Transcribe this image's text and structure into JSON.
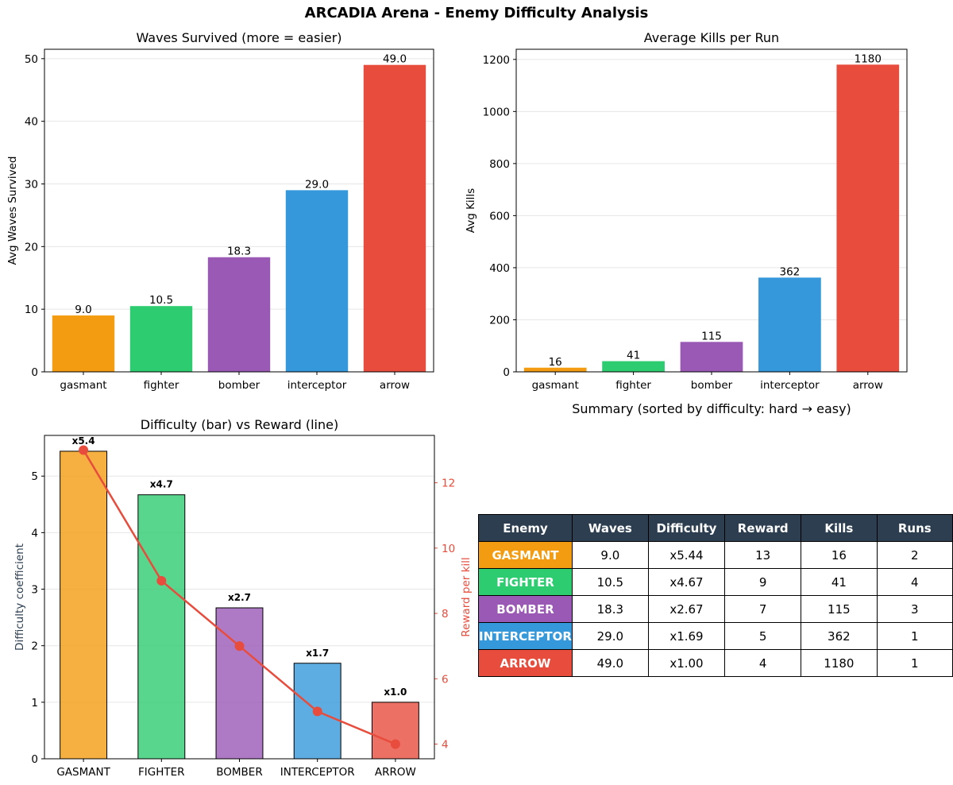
{
  "page_title": "ARCADIA Arena - Enemy Difficulty Analysis",
  "chart_data": [
    {
      "type": "bar",
      "title": "Waves Survived (more = easier)",
      "xlabel": "",
      "ylabel": "Avg Waves Survived",
      "categories": [
        "gasmant",
        "fighter",
        "bomber",
        "interceptor",
        "arrow"
      ],
      "values": [
        9.0,
        10.5,
        18.3,
        29.0,
        49.0
      ],
      "value_labels": [
        "9.0",
        "10.5",
        "18.3",
        "29.0",
        "49.0"
      ],
      "colors": [
        "#f39c12",
        "#2ecc71",
        "#9b59b6",
        "#3498db",
        "#e74c3c"
      ],
      "ylim": [
        0,
        51.5
      ],
      "yticks": [
        0,
        10,
        20,
        30,
        40,
        50
      ],
      "grid": "y"
    },
    {
      "type": "bar",
      "title": "Average Kills per Run",
      "xlabel": "",
      "ylabel": "Avg Kills",
      "categories": [
        "gasmant",
        "fighter",
        "bomber",
        "interceptor",
        "arrow"
      ],
      "values": [
        16,
        41,
        115,
        362,
        1180
      ],
      "value_labels": [
        "16",
        "41",
        "115",
        "362",
        "1180"
      ],
      "colors": [
        "#f39c12",
        "#2ecc71",
        "#9b59b6",
        "#3498db",
        "#e74c3c"
      ],
      "ylim": [
        0,
        1239
      ],
      "yticks": [
        0,
        200,
        400,
        600,
        800,
        1000,
        1200
      ],
      "grid": "y"
    },
    {
      "type": "bar+line",
      "title": "Difficulty (bar) vs Reward (line)",
      "xlabel": "",
      "categories": [
        "GASMANT",
        "FIGHTER",
        "BOMBER",
        "INTERCEPTOR",
        "ARROW"
      ],
      "series": [
        {
          "name": "Difficulty coefficient",
          "type": "bar",
          "axis": "left",
          "values": [
            5.44,
            4.67,
            2.67,
            1.69,
            1.0
          ],
          "value_labels": [
            "x5.4",
            "x4.7",
            "x2.7",
            "x1.7",
            "x1.0"
          ]
        },
        {
          "name": "Reward per kill",
          "type": "line",
          "axis": "right",
          "color": "#e74c3c",
          "values": [
            13,
            9,
            7,
            5,
            4
          ]
        }
      ],
      "colors": [
        "#f39c12",
        "#2ecc71",
        "#9b59b6",
        "#3498db",
        "#e74c3c"
      ],
      "ylabel_left": "Difficulty coefficient",
      "ylabel_right": "Reward per kill",
      "ylim_left": [
        0,
        5.72
      ],
      "ylim_right": [
        3.55,
        13.45
      ],
      "yticks_left": [
        0,
        1,
        2,
        3,
        4,
        5
      ],
      "yticks_right": [
        4,
        6,
        8,
        10,
        12
      ],
      "left_label_color": "#2c3e50",
      "right_axis_color": "#e74c3c",
      "grid": "y"
    },
    {
      "type": "table",
      "title": "Summary (sorted by difficulty: hard → easy)",
      "columns": [
        "Enemy",
        "Waves",
        "Difficulty",
        "Reward",
        "Kills",
        "Runs"
      ],
      "header_color": "#2c3e50",
      "rows": [
        {
          "enemy": "GASMANT",
          "color": "#f39c12",
          "cells": [
            "9.0",
            "x5.44",
            "13",
            "16",
            "2"
          ]
        },
        {
          "enemy": "FIGHTER",
          "color": "#2ecc71",
          "cells": [
            "10.5",
            "x4.67",
            "9",
            "41",
            "4"
          ]
        },
        {
          "enemy": "BOMBER",
          "color": "#9b59b6",
          "cells": [
            "18.3",
            "x2.67",
            "7",
            "115",
            "3"
          ]
        },
        {
          "enemy": "INTERCEPTOR",
          "color": "#3498db",
          "cells": [
            "29.0",
            "x1.69",
            "5",
            "362",
            "1"
          ]
        },
        {
          "enemy": "ARROW",
          "color": "#e74c3c",
          "cells": [
            "49.0",
            "x1.00",
            "4",
            "1180",
            "1"
          ]
        }
      ]
    }
  ]
}
